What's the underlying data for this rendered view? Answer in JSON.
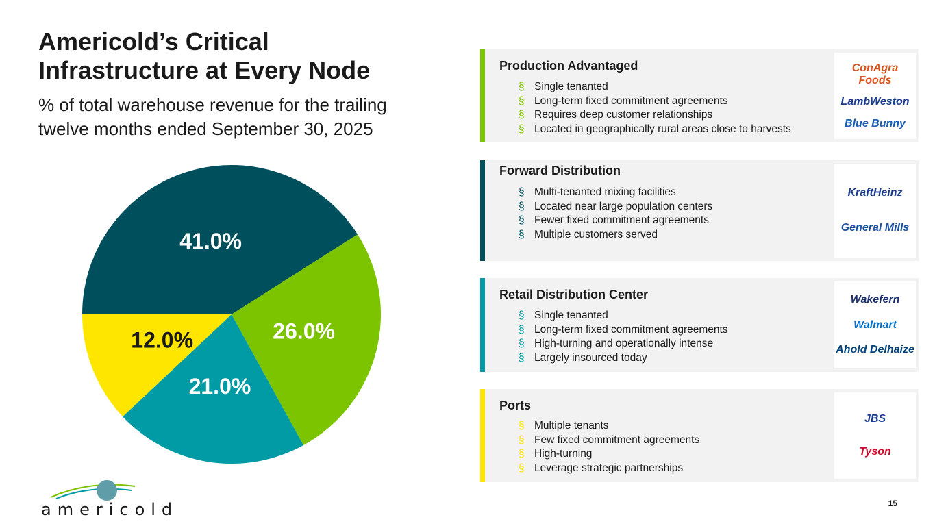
{
  "title": "Americold’s Critical Infrastructure at Every Node",
  "subtitle": "% of total warehouse revenue for the trailing twelve months ended September 30, 2025",
  "chart_data": {
    "type": "pie",
    "values": [
      41,
      26,
      21,
      12
    ],
    "value_labels": [
      "41.0%",
      "26.0%",
      "21.0%",
      "12.0%"
    ],
    "colors": [
      "#004f5d",
      "#7dc400",
      "#009ba4",
      "#ffe600"
    ]
  },
  "bullet_marker": "§",
  "panels": [
    {
      "title": "Production Advantaged",
      "color": "#7dc400",
      "bullets": [
        "Single tenanted",
        "Long-term fixed commitment agreements",
        "Requires deep customer relationships",
        "Located in geographically rural areas close to harvests"
      ],
      "logos": [
        {
          "text": "ConAgra Foods",
          "color": "#d9541e"
        },
        {
          "text": "LambWeston",
          "color": "#1a3d8f"
        },
        {
          "text": "Blue Bunny",
          "color": "#1a5fb4"
        }
      ]
    },
    {
      "title": "Forward Distribution",
      "color": "#004f5d",
      "bullets": [
        "Multi-tenanted mixing facilities",
        "Located near large population centers",
        "Fewer fixed commitment agreements",
        "Multiple customers served"
      ],
      "logos": [
        {
          "text": "KraftHeinz",
          "color": "#1a3d8f"
        },
        {
          "text": "General Mills",
          "color": "#1a4fa0"
        }
      ]
    },
    {
      "title": "Retail Distribution Center",
      "color": "#009ba4",
      "bullets": [
        "Single tenanted",
        "Long-term fixed commitment agreements",
        "High-turning and operationally intense",
        "Largely insourced today"
      ],
      "logos": [
        {
          "text": "Wakefern",
          "color": "#1a2f6e"
        },
        {
          "text": "Walmart",
          "color": "#0071ce"
        },
        {
          "text": "Ahold Delhaize",
          "color": "#00447c"
        }
      ]
    },
    {
      "title": "Ports",
      "color": "#ffe600",
      "bullets": [
        "Multiple tenants",
        "Few fixed commitment agreements",
        "High-turning",
        "Leverage strategic partnerships"
      ],
      "logos": [
        {
          "text": "JBS",
          "color": "#1d3c8f"
        },
        {
          "text": "Tyson",
          "color": "#c8102e"
        }
      ]
    }
  ],
  "brand": "americold",
  "page_number": "15"
}
